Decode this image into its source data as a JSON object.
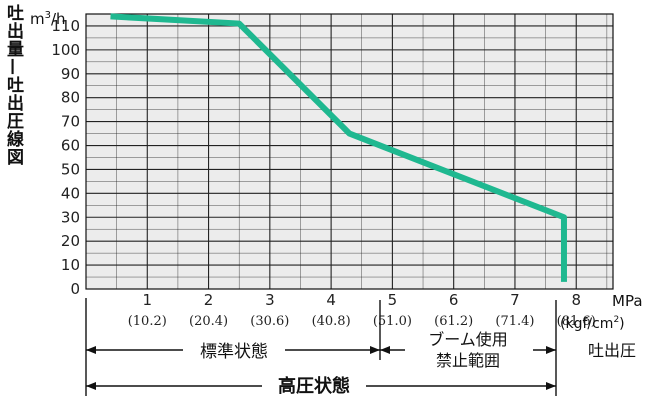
{
  "chart_data": {
    "type": "line",
    "title": "吐出量—吐出圧線図",
    "ylabel": "m3/h",
    "xlabel": "吐出圧",
    "x_unit_primary": "MPa",
    "x_unit_secondary": "(kgf/cm2)",
    "xlim": [
      0,
      8.6
    ],
    "ylim": [
      0,
      115
    ],
    "x_ticks": [
      "1",
      "2",
      "3",
      "4",
      "5",
      "6",
      "7",
      "8"
    ],
    "x_ticks_secondary": [
      "(10.2)",
      "(20.4)",
      "(30.6)",
      "(40.8)",
      "(51.0)",
      "(61.2)",
      "(71.4)",
      "(81.6)"
    ],
    "y_ticks": [
      "0",
      "10",
      "20",
      "30",
      "40",
      "50",
      "60",
      "70",
      "80",
      "90",
      "100",
      "110"
    ],
    "grid": true,
    "series": [
      {
        "color": "#1fb890",
        "x": [
          0.4,
          2.5,
          4.3,
          5.0,
          7.8,
          7.8
        ],
        "y": [
          114,
          111,
          65,
          58,
          30,
          3
        ]
      }
    ],
    "annotations": {
      "standard_range": "標準状態",
      "boom_range_line1": "ブーム使用",
      "boom_range_line2": "禁止範囲",
      "high_pressure_range": "高圧状態"
    }
  }
}
